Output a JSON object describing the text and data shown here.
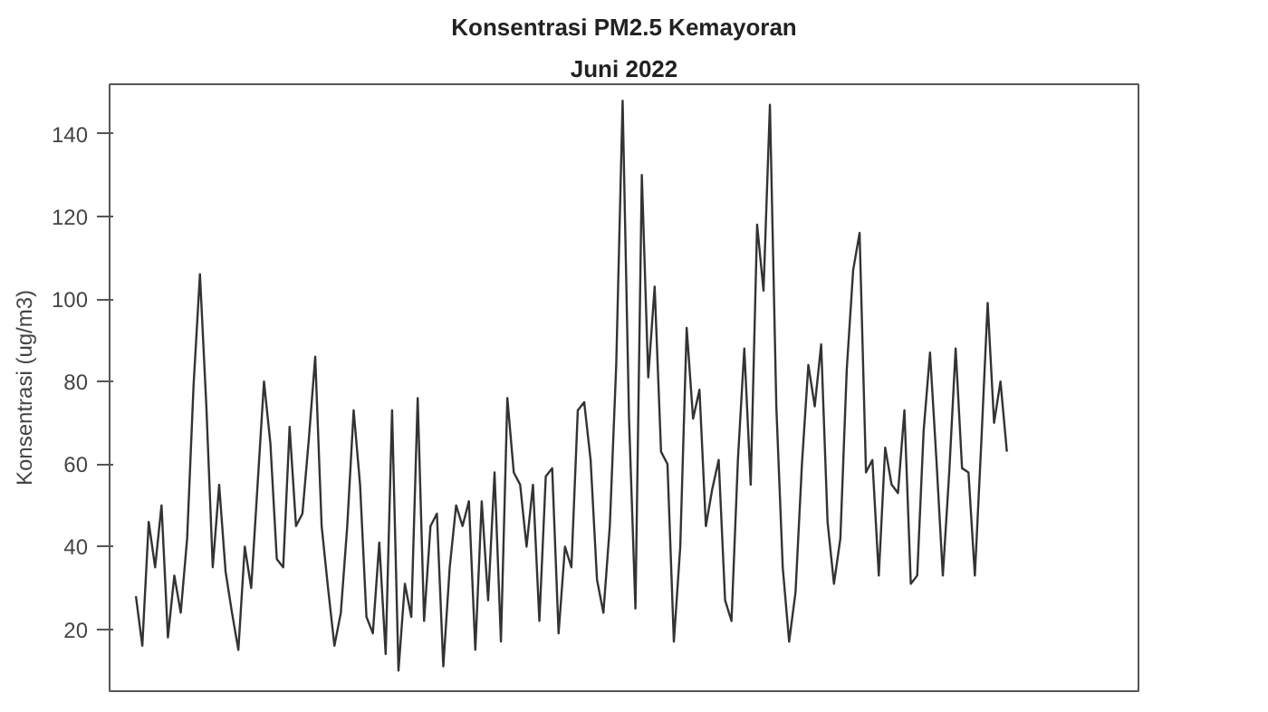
{
  "chart_data": {
    "type": "line",
    "title": "Konsentrasi PM2.5 Kemayoran",
    "subtitle": "Juni 2022",
    "ylabel": "Konsentrasi (ug/m3)",
    "ylim": [
      5,
      152
    ],
    "yticks": [
      20,
      40,
      60,
      80,
      100,
      120,
      140
    ],
    "categories": [
      null,
      null,
      null,
      null,
      null,
      null,
      null,
      null,
      null,
      null,
      null,
      null,
      null,
      null,
      null,
      null,
      null,
      null,
      null,
      null,
      null,
      null,
      null,
      null,
      null,
      null,
      null,
      null,
      null,
      null,
      null,
      null,
      null,
      null,
      null,
      null,
      null,
      null,
      null,
      null,
      null,
      null,
      null,
      null,
      null,
      null,
      null,
      null,
      null,
      null,
      null,
      null,
      null,
      null,
      null,
      null,
      null,
      null,
      null,
      null,
      null,
      null,
      null,
      null,
      null,
      null,
      null,
      null,
      null,
      null,
      null,
      null,
      null,
      null,
      null,
      null,
      null,
      null,
      null,
      null,
      null,
      null,
      null,
      null,
      null,
      null,
      null,
      null,
      null,
      null,
      null,
      null,
      null,
      null,
      null,
      null,
      null,
      null,
      null,
      null,
      null,
      null,
      null,
      null,
      null,
      null,
      null,
      null,
      null,
      null,
      null,
      null,
      null,
      null,
      null,
      null,
      null,
      null,
      null,
      null,
      null,
      null,
      null,
      null,
      null,
      null,
      null,
      null,
      null,
      null,
      null,
      null,
      null,
      null,
      null,
      null,
      null
    ],
    "tick_labels": "y",
    "grid": false,
    "series": [
      {
        "color": "#333333",
        "values": [
          28,
          16,
          46,
          35,
          50,
          18,
          33,
          24,
          42,
          79,
          106,
          74,
          35,
          55,
          34,
          24,
          15,
          40,
          30,
          55,
          80,
          65,
          37,
          35,
          69,
          45,
          48,
          66,
          86,
          45,
          30,
          16,
          24,
          45,
          73,
          55,
          23,
          19,
          41,
          14,
          73,
          10,
          31,
          23,
          76,
          22,
          45,
          48,
          11,
          35,
          50,
          45,
          51,
          15,
          51,
          27,
          58,
          17,
          76,
          58,
          55,
          40,
          55,
          22,
          57,
          59,
          19,
          40,
          35,
          73,
          75,
          61,
          32,
          24,
          45,
          84,
          148,
          71,
          25,
          130,
          81,
          103,
          63,
          60,
          17,
          40,
          93,
          71,
          78,
          45,
          54,
          61,
          27,
          22,
          61,
          88,
          55,
          118,
          102,
          147,
          74,
          35,
          17,
          29,
          60,
          84,
          74,
          89,
          46,
          31,
          42,
          83,
          107,
          116,
          58,
          61,
          33,
          64,
          55,
          53,
          73,
          31,
          33,
          68,
          87,
          61,
          33,
          58,
          88,
          59,
          58,
          33,
          65,
          99,
          70,
          80,
          63
        ]
      }
    ]
  }
}
